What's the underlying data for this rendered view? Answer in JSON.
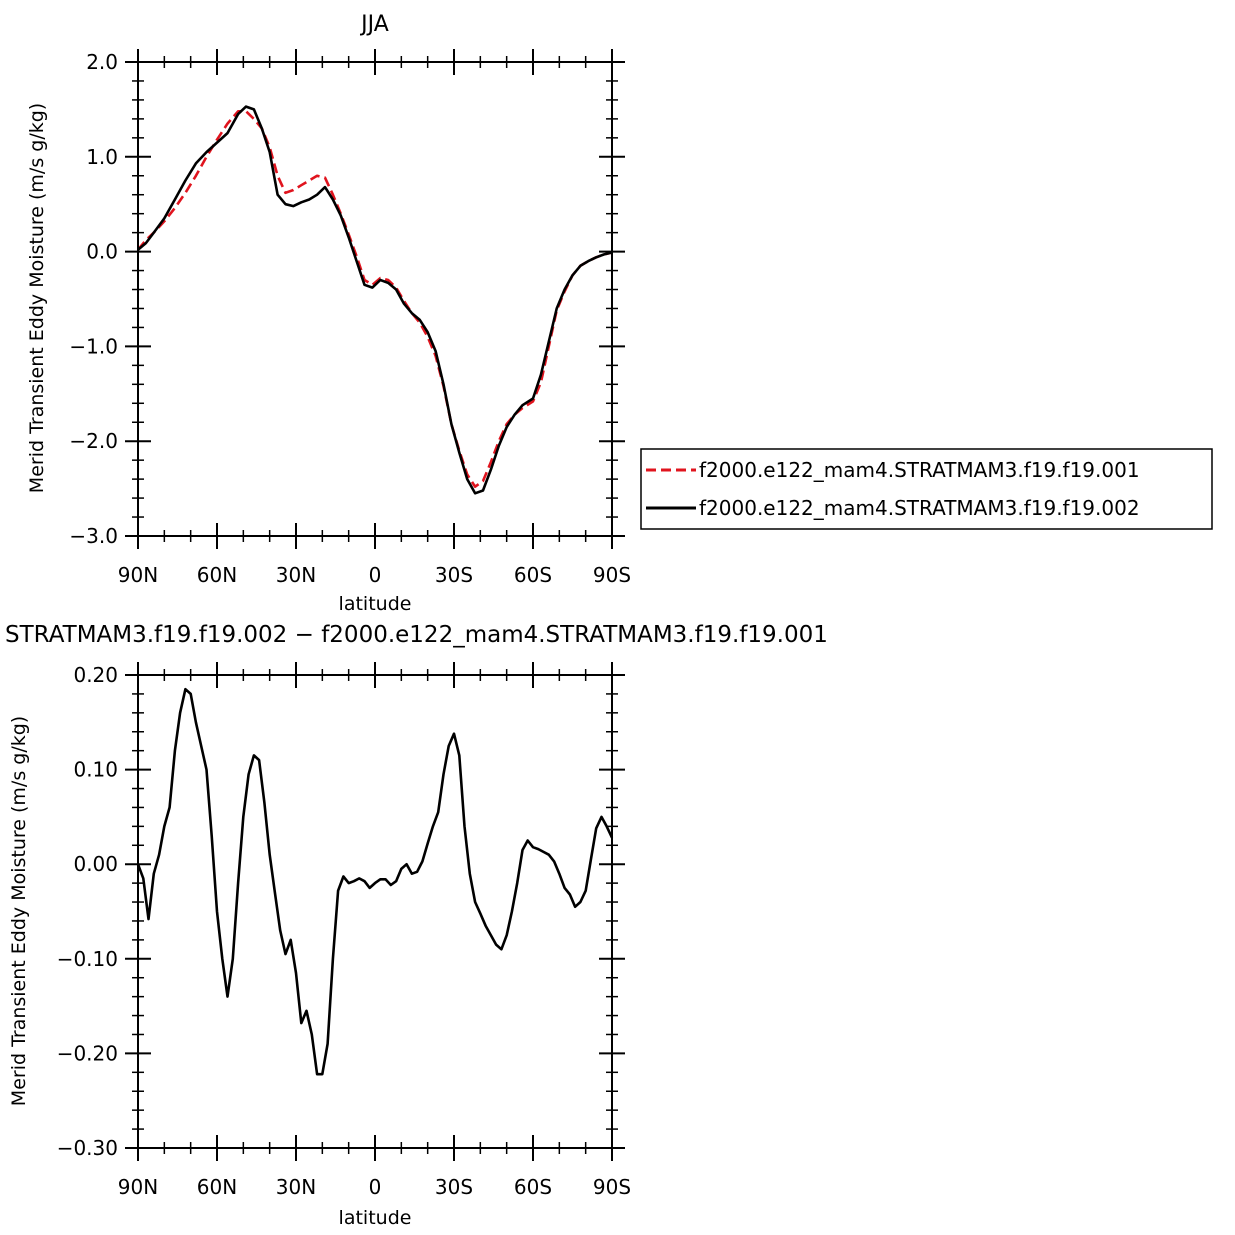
{
  "chart_data": [
    {
      "type": "line",
      "title": "JJA",
      "xlabel": "latitude",
      "ylabel": "Merid Transient Eddy Moisture (m/s g/kg)",
      "xlim": [
        90,
        -90
      ],
      "ylim": [
        -3.0,
        2.0
      ],
      "xticks": [
        90,
        60,
        30,
        0,
        -30,
        -60,
        -90
      ],
      "xtick_labels": [
        "90N",
        "60N",
        "30N",
        "0",
        "30S",
        "60S",
        "90S"
      ],
      "yticks": [
        2.0,
        1.0,
        0.0,
        -1.0,
        -2.0,
        -3.0
      ],
      "ytick_labels": [
        "2.0",
        "1.0",
        "0.0",
        "−1.0",
        "−2.0",
        "−3.0"
      ],
      "grid": false,
      "legend_position": "right",
      "series": [
        {
          "name": "f2000.e122_mam4.STRATMAM3.f19.f19.001",
          "color": "#e0141e",
          "dash": "dashed",
          "x": [
            90,
            87,
            84,
            80,
            76,
            72,
            68,
            64,
            60,
            56,
            52,
            49,
            46,
            43,
            40,
            37,
            34,
            31,
            28,
            25,
            22,
            19,
            16,
            13,
            10,
            7,
            4,
            1,
            -2,
            -5,
            -8,
            -11,
            -14,
            -17,
            -20,
            -23,
            -26,
            -29,
            -32,
            -35,
            -38,
            -41,
            -44,
            -47,
            -50,
            -53,
            -56,
            -60,
            -63,
            -66,
            -69,
            -72,
            -75,
            -78,
            -81,
            -84,
            -87,
            -90
          ],
          "values": [
            0.02,
            0.12,
            0.2,
            0.32,
            0.46,
            0.62,
            0.8,
            1.0,
            1.18,
            1.35,
            1.48,
            1.48,
            1.4,
            1.3,
            1.1,
            0.8,
            0.62,
            0.65,
            0.7,
            0.75,
            0.8,
            0.78,
            0.6,
            0.4,
            0.18,
            -0.05,
            -0.3,
            -0.35,
            -0.28,
            -0.3,
            -0.38,
            -0.52,
            -0.65,
            -0.75,
            -0.9,
            -1.1,
            -1.42,
            -1.82,
            -2.1,
            -2.35,
            -2.48,
            -2.42,
            -2.22,
            -2.0,
            -1.82,
            -1.72,
            -1.65,
            -1.58,
            -1.38,
            -1.0,
            -0.62,
            -0.42,
            -0.25,
            -0.15,
            -0.1,
            -0.06,
            -0.03,
            -0.01
          ]
        },
        {
          "name": "f2000.e122_mam4.STRATMAM3.f19.f19.002",
          "color": "#000000",
          "dash": "solid",
          "x": [
            90,
            87,
            84,
            80,
            76,
            72,
            68,
            64,
            60,
            56,
            52,
            49,
            46,
            43,
            40,
            37,
            34,
            31,
            28,
            25,
            22,
            19,
            16,
            13,
            10,
            7,
            4,
            1,
            -2,
            -5,
            -8,
            -11,
            -14,
            -17,
            -20,
            -23,
            -26,
            -29,
            -32,
            -35,
            -38,
            -41,
            -44,
            -47,
            -50,
            -53,
            -56,
            -60,
            -63,
            -66,
            -69,
            -72,
            -75,
            -78,
            -81,
            -84,
            -87,
            -90
          ],
          "values": [
            0.02,
            0.09,
            0.2,
            0.35,
            0.55,
            0.75,
            0.93,
            1.05,
            1.15,
            1.25,
            1.45,
            1.53,
            1.5,
            1.3,
            1.05,
            0.6,
            0.5,
            0.48,
            0.52,
            0.55,
            0.6,
            0.68,
            0.55,
            0.38,
            0.15,
            -0.1,
            -0.35,
            -0.38,
            -0.3,
            -0.33,
            -0.4,
            -0.55,
            -0.65,
            -0.72,
            -0.85,
            -1.05,
            -1.4,
            -1.82,
            -2.12,
            -2.4,
            -2.55,
            -2.52,
            -2.3,
            -2.05,
            -1.85,
            -1.72,
            -1.62,
            -1.55,
            -1.3,
            -0.95,
            -0.6,
            -0.4,
            -0.25,
            -0.15,
            -0.1,
            -0.06,
            -0.03,
            -0.01
          ]
        }
      ]
    },
    {
      "type": "line",
      "title": "STRATMAM3.f19.f19.002 − f2000.e122_mam4.STRATMAM3.f19.f19.001",
      "xlabel": "latitude",
      "ylabel": "Merid Transient Eddy Moisture (m/s g/kg)",
      "xlim": [
        90,
        -90
      ],
      "ylim": [
        -0.3,
        0.2
      ],
      "xticks": [
        90,
        60,
        30,
        0,
        -30,
        -60,
        -90
      ],
      "xtick_labels": [
        "90N",
        "60N",
        "30N",
        "0",
        "30S",
        "60S",
        "90S"
      ],
      "yticks": [
        0.2,
        0.1,
        0.0,
        -0.1,
        -0.2,
        -0.3
      ],
      "ytick_labels": [
        "0.20",
        "0.10",
        "0.00",
        "−0.10",
        "−0.20",
        "−0.30"
      ],
      "grid": false,
      "series": [
        {
          "color": "#000000",
          "dash": "solid",
          "x": [
            90,
            88,
            86,
            84,
            82,
            80,
            78,
            76,
            74,
            72,
            70,
            68,
            66,
            64,
            62,
            60,
            58,
            56,
            54,
            52,
            50,
            48,
            46,
            44,
            42,
            40,
            38,
            36,
            34,
            32,
            30,
            28,
            26,
            24,
            22,
            20,
            18,
            16,
            14,
            12,
            10,
            8,
            6,
            4,
            2,
            0,
            -2,
            -4,
            -6,
            -8,
            -10,
            -12,
            -14,
            -16,
            -18,
            -20,
            -22,
            -24,
            -26,
            -28,
            -30,
            -32,
            -34,
            -36,
            -38,
            -40,
            -42,
            -44,
            -46,
            -48,
            -50,
            -52,
            -54,
            -56,
            -58,
            -60,
            -62,
            -64,
            -66,
            -68,
            -70,
            -72,
            -74,
            -76,
            -78,
            -80,
            -82,
            -84,
            -86,
            -88,
            -90
          ],
          "values": [
            0.0,
            -0.015,
            -0.058,
            -0.01,
            0.01,
            0.04,
            0.06,
            0.12,
            0.16,
            0.185,
            0.18,
            0.15,
            0.125,
            0.1,
            0.03,
            -0.05,
            -0.1,
            -0.14,
            -0.1,
            -0.02,
            0.05,
            0.095,
            0.115,
            0.11,
            0.065,
            0.01,
            -0.03,
            -0.07,
            -0.095,
            -0.08,
            -0.115,
            -0.168,
            -0.155,
            -0.18,
            -0.222,
            -0.222,
            -0.19,
            -0.1,
            -0.028,
            -0.013,
            -0.02,
            -0.018,
            -0.015,
            -0.018,
            -0.025,
            -0.02,
            -0.016,
            -0.016,
            -0.022,
            -0.018,
            -0.005,
            0.0,
            -0.01,
            -0.008,
            0.003,
            0.022,
            0.04,
            0.055,
            0.095,
            0.125,
            0.138,
            0.115,
            0.04,
            -0.01,
            -0.04,
            -0.052,
            -0.065,
            -0.075,
            -0.085,
            -0.09,
            -0.075,
            -0.05,
            -0.02,
            0.015,
            0.025,
            0.018,
            0.016,
            0.013,
            0.01,
            0.003,
            -0.01,
            -0.025,
            -0.032,
            -0.045,
            -0.04,
            -0.028,
            0.005,
            0.038,
            0.05,
            0.04,
            0.028
          ]
        }
      ]
    }
  ]
}
